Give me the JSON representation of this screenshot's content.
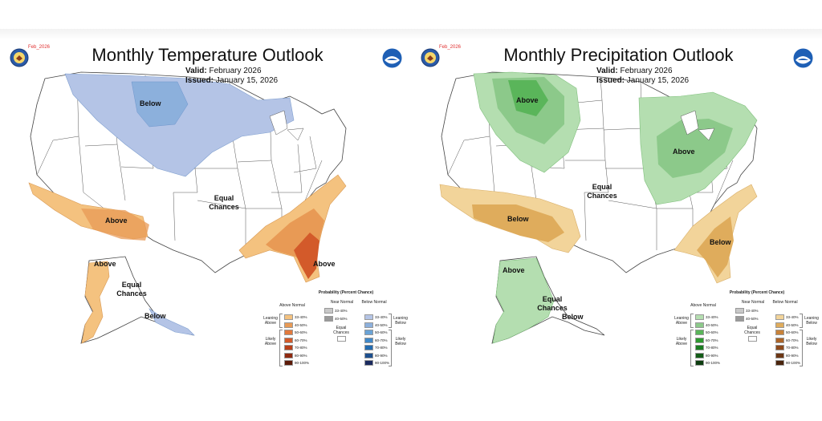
{
  "panels": {
    "temperature": {
      "tag": "Feb_2026",
      "title": "Monthly Temperature Outlook",
      "valid_label": "Valid:",
      "valid_value": "February 2026",
      "issued_label": "Issued:",
      "issued_value": "January 15, 2026",
      "regions": {
        "below_north": "Below",
        "above_southwest": "Above",
        "equal_center": "Equal Chances",
        "above_southeast": "Above",
        "above_alaska": "Above",
        "equal_alaska": "Equal Chances",
        "below_alaska": "Below"
      },
      "legend": {
        "title": "Probability (Percent Chance)",
        "col_above": "Above Normal",
        "col_near": "Near Normal",
        "col_below": "Below Normal",
        "leaning_above": "Leaning Above",
        "likely_above": "Likely Above",
        "leaning_below": "Leaning Below",
        "likely_below": "Likely Below",
        "equal_chances": "Equal Chances",
        "ranges": [
          "33-40%",
          "40-50%",
          "50-60%",
          "60-70%",
          "70-80%",
          "80-90%",
          "90-100%"
        ],
        "near_ranges": [
          "33-40%",
          "40-50%"
        ],
        "above_colors": [
          "#f4c27f",
          "#e89a55",
          "#e27a3d",
          "#d35a2a",
          "#b8401a",
          "#8f2a10",
          "#5c1a08"
        ],
        "below_colors": [
          "#b4c4e6",
          "#8cb0dc",
          "#6aa3d6",
          "#4189c9",
          "#236cb1",
          "#1d4f8e",
          "#1a2a5e"
        ],
        "near_colors": [
          "#c8c8c8",
          "#9a9a9a"
        ]
      }
    },
    "precipitation": {
      "tag": "Feb_2026",
      "title": "Monthly Precipitation Outlook",
      "valid_label": "Valid:",
      "valid_value": "February 2026",
      "issued_label": "Issued:",
      "issued_value": "January 15, 2026",
      "regions": {
        "above_north": "Above",
        "equal_center": "Equal Chances",
        "above_east": "Above",
        "below_southwest": "Below",
        "below_southeast": "Below",
        "above_alaska": "Above",
        "equal_alaska": "Equal Chances",
        "below_alaska": "Below"
      },
      "legend": {
        "title": "Probability (Percent Chance)",
        "col_above": "Above Normal",
        "col_near": "Near Normal",
        "col_below": "Below Normal",
        "leaning_above": "Leaning Above",
        "likely_above": "Likely Above",
        "leaning_below": "Leaning Below",
        "likely_below": "Likely Below",
        "equal_chances": "Equal Chances",
        "ranges": [
          "33-40%",
          "40-50%",
          "50-60%",
          "60-70%",
          "70-80%",
          "80-90%",
          "90-100%"
        ],
        "near_ranges": [
          "33-40%",
          "40-50%"
        ],
        "above_colors": [
          "#b4deb0",
          "#8cc98a",
          "#5ab55a",
          "#2e9a30",
          "#1b7d22",
          "#135c17",
          "#0c3d0f"
        ],
        "below_colors": [
          "#f2d49a",
          "#dfac5c",
          "#c8823a",
          "#ac6428",
          "#8e4a1c",
          "#6c3614",
          "#4a240c"
        ],
        "near_colors": [
          "#c8c8c8",
          "#9a9a9a"
        ]
      }
    }
  }
}
